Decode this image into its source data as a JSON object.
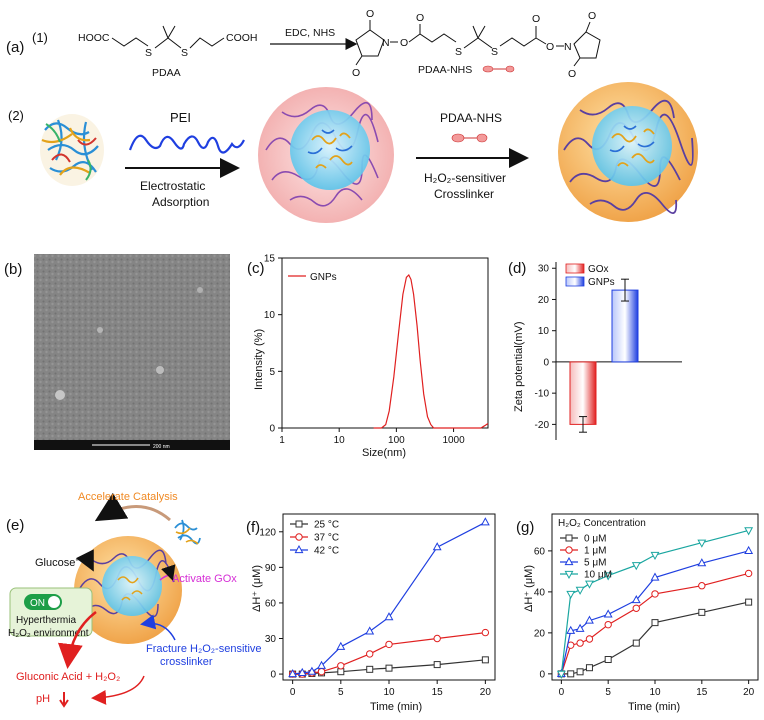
{
  "scheme": {
    "panel_a": "(a)",
    "step1": "(1)",
    "pdaa_label": "PDAA",
    "reagent": "EDC, NHS",
    "pdaa_nhs_label": "PDAA-NHS",
    "cooh_left": "HOOC",
    "cooh_right": "COOH",
    "s": "S",
    "n": "N",
    "o": "O",
    "step2": "(2)",
    "pei": "PEI",
    "electro_line1": "Electrostatic",
    "electro_line2": "Adsorption",
    "pdaa_nhs2": "PDAA-NHS",
    "crosslink_line1": "H₂O₂-sensitiver",
    "crosslink_line2": "Crosslinker"
  },
  "panel_b": {
    "label": "(b)",
    "scale_text": "200 nm"
  },
  "panel_e": {
    "label": "(e)",
    "accelerate": "Accelerate Catalysis",
    "glucose": "Glucose",
    "activate": "Activate GOx",
    "on_label": "ON",
    "hyperthermia": "Hyperthermia",
    "h2o2_env": "H₂O₂ environment",
    "fracture1": "Fracture H₂O₂-sensitive",
    "fracture2": "crosslinker",
    "gluconic": "Gluconic Acid + H₂O₂",
    "ph": "pH"
  },
  "colors": {
    "red": "#e02020",
    "blue": "#1f3fe0",
    "teal": "#1aa6a0",
    "black": "#333333",
    "shell_orange": "#f6b85a",
    "core_cyan": "#7fd3f0",
    "pink": "#f7c9c9",
    "purple": "#6a3fa0"
  },
  "chart_data": [
    {
      "panel": "(c)",
      "type": "line",
      "xscale": "log",
      "xlim": [
        1,
        4000
      ],
      "ylim": [
        0,
        15
      ],
      "xticks": [
        "1",
        "10",
        "100",
        "1000"
      ],
      "yticks": [
        "0",
        "5",
        "10",
        "15"
      ],
      "xlabel": "Size(nm)",
      "ylabel": "Intensity (%)",
      "series": [
        {
          "name": "GNPs",
          "x": [
            40,
            55,
            65,
            75,
            90,
            110,
            130,
            150,
            165,
            180,
            200,
            230,
            260,
            300,
            350,
            400,
            450,
            500,
            1000,
            3000,
            3500,
            4000
          ],
          "y": [
            0,
            0,
            0.3,
            1.5,
            4.5,
            8.5,
            11.8,
            13.3,
            13.5,
            13.1,
            11.8,
            9.0,
            6.0,
            3.0,
            1.0,
            0.3,
            0,
            0,
            0,
            0,
            0.2,
            0.4
          ]
        }
      ]
    },
    {
      "panel": "(d)",
      "type": "bar",
      "categories": [
        "GOx",
        "GNPs"
      ],
      "values": [
        -20,
        23
      ],
      "errors": [
        2.5,
        3.5
      ],
      "ylim": [
        -25,
        32
      ],
      "yticks": [
        "-20",
        "-10",
        "0",
        "10",
        "20",
        "30"
      ],
      "ylabel": "Zeta potential(mV)",
      "series": [
        {
          "name": "GOx"
        },
        {
          "name": "GNPs"
        }
      ]
    },
    {
      "panel": "(f)",
      "type": "line",
      "x": [
        0,
        1,
        2,
        3,
        5,
        8,
        10,
        15,
        20
      ],
      "xlim": [
        -1,
        21
      ],
      "ylim": [
        -5,
        135
      ],
      "xticks": [
        "0",
        "5",
        "10",
        "15",
        "20"
      ],
      "yticks": [
        "0",
        "30",
        "60",
        "90",
        "120"
      ],
      "xlabel": "Time (min)",
      "ylabel": "ΔH⁺ (μM)",
      "series": [
        {
          "name": "25 °C",
          "values": [
            0,
            0,
            0.5,
            1,
            2,
            4,
            5,
            8,
            12
          ]
        },
        {
          "name": "37 °C",
          "values": [
            0,
            0,
            1,
            2,
            7,
            17,
            25,
            30,
            35
          ]
        },
        {
          "name": "42 °C",
          "values": [
            0,
            1,
            2,
            7,
            23,
            36,
            48,
            107,
            128
          ]
        }
      ]
    },
    {
      "panel": "(g)",
      "type": "line",
      "x": [
        0,
        1,
        2,
        3,
        5,
        8,
        10,
        15,
        20
      ],
      "xlim": [
        -1,
        21
      ],
      "ylim": [
        -3,
        78
      ],
      "xticks": [
        "0",
        "5",
        "10",
        "15",
        "20"
      ],
      "yticks": [
        "0",
        "20",
        "40",
        "60"
      ],
      "xlabel": "Time (min)",
      "ylabel": "ΔH⁺ (μM)",
      "legend_title": "H₂O₂ Concentration",
      "series": [
        {
          "name": "0 μM",
          "values": [
            0,
            0,
            1,
            3,
            7,
            15,
            25,
            30,
            35
          ]
        },
        {
          "name": "1 μM",
          "values": [
            0,
            14,
            15,
            17,
            24,
            32,
            39,
            43,
            49
          ]
        },
        {
          "name": "5 μM",
          "values": [
            0,
            21,
            22,
            26,
            29,
            36,
            47,
            54,
            60
          ]
        },
        {
          "name": "10 μM",
          "values": [
            0,
            39,
            41,
            44,
            48,
            53,
            58,
            64,
            70
          ]
        }
      ]
    }
  ]
}
